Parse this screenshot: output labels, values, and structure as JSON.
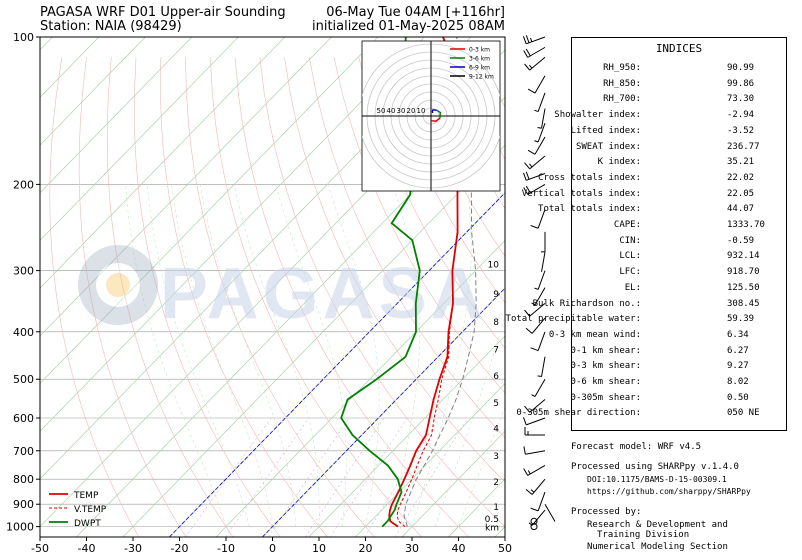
{
  "header": {
    "title_left": "PAGASA WRF D01 Upper-air Sounding",
    "station": "Station: NAIA (98429)",
    "valid_time": "06-May Tue 04AM [+116hr]",
    "init_time": "initialized 01-May-2025 08AM"
  },
  "watermark": "PAGASA",
  "colors": {
    "temp": "#e00000",
    "dwpt": "#008000",
    "vtemp": "#e00000",
    "parcel": "#808080",
    "isotherm": "#aad2aa",
    "dry_adiabat": "#f2b8b8",
    "moist_adiabat": "#c8e6c8",
    "mixing_ratio": "#d8b0d8",
    "zero_isotherm": "#0000cc"
  },
  "chart_data": {
    "type": "skew-t",
    "x_ticks": [
      -50,
      -40,
      -30,
      -20,
      -10,
      0,
      10,
      20,
      30,
      40,
      50
    ],
    "xlim": [
      -50,
      50
    ],
    "y_ticks": [
      100,
      200,
      300,
      400,
      500,
      600,
      700,
      800,
      900,
      1000
    ],
    "ylim": [
      1050,
      100
    ],
    "y_scale": "log",
    "height_labels": [
      {
        "label": "10",
        "p": 290
      },
      {
        "label": "9",
        "p": 333
      },
      {
        "label": "8",
        "p": 380
      },
      {
        "label": "7",
        "p": 433
      },
      {
        "label": "6",
        "p": 490
      },
      {
        "label": "5",
        "p": 556
      },
      {
        "label": "4",
        "p": 627
      },
      {
        "label": "3",
        "p": 714
      },
      {
        "label": "2",
        "p": 806
      },
      {
        "label": "1",
        "p": 908
      },
      {
        "label": "0.5",
        "p": 960
      }
    ],
    "height_unit": "km",
    "legend": [
      "TEMP",
      "V.TEMP",
      "DWPT"
    ],
    "legend_position": "bottom-left",
    "series": [
      {
        "name": "TEMP",
        "color": "#e00000",
        "dash": "",
        "points": [
          [
            1000,
            27
          ],
          [
            975,
            24.2
          ],
          [
            950,
            22.8
          ],
          [
            925,
            21.8
          ],
          [
            900,
            21
          ],
          [
            850,
            19.8
          ],
          [
            800,
            18.4
          ],
          [
            750,
            16.8
          ],
          [
            700,
            15
          ],
          [
            650,
            13.8
          ],
          [
            600,
            11
          ],
          [
            550,
            8
          ],
          [
            500,
            5
          ],
          [
            450,
            2
          ],
          [
            400,
            -3
          ],
          [
            350,
            -8
          ],
          [
            300,
            -15
          ],
          [
            250,
            -22
          ],
          [
            200,
            -32
          ],
          [
            175,
            -38
          ],
          [
            150,
            -44
          ],
          [
            125,
            -52
          ],
          [
            110,
            -60
          ],
          [
            100,
            -66
          ]
        ]
      },
      {
        "name": "V.TEMP",
        "color": "#e00000",
        "dash": "3,2",
        "points": [
          [
            1000,
            28.5
          ],
          [
            975,
            26
          ],
          [
            950,
            24.5
          ],
          [
            925,
            23.5
          ],
          [
            900,
            22.8
          ],
          [
            850,
            21.5
          ],
          [
            800,
            20
          ],
          [
            750,
            18.3
          ],
          [
            700,
            16.5
          ],
          [
            650,
            15
          ],
          [
            600,
            12
          ],
          [
            550,
            9
          ],
          [
            500,
            5.5
          ],
          [
            450,
            2.3
          ],
          [
            400,
            -2.8
          ],
          [
            350,
            -8
          ],
          [
            300,
            -15
          ]
        ]
      },
      {
        "name": "DWPT",
        "color": "#008000",
        "dash": "",
        "points": [
          [
            1000,
            23.6
          ],
          [
            975,
            23.6
          ],
          [
            950,
            23.2
          ],
          [
            925,
            22.8
          ],
          [
            900,
            22
          ],
          [
            850,
            20.5
          ],
          [
            800,
            17
          ],
          [
            750,
            12
          ],
          [
            700,
            5
          ],
          [
            650,
            -2
          ],
          [
            600,
            -8
          ],
          [
            550,
            -10.5
          ],
          [
            500,
            -8.5
          ],
          [
            450,
            -7
          ],
          [
            400,
            -10
          ],
          [
            350,
            -16
          ],
          [
            300,
            -22
          ],
          [
            260,
            -30
          ],
          [
            240,
            -38
          ],
          [
            210,
            -40
          ],
          [
            190,
            -44
          ],
          [
            170,
            -50
          ],
          [
            150,
            -56
          ],
          [
            125,
            -64
          ],
          [
            110,
            -70
          ],
          [
            100,
            -74
          ]
        ]
      },
      {
        "name": "",
        "color": "#808080",
        "dash": "5,3",
        "points": [
          [
            1000,
            29
          ],
          [
            950,
            26
          ],
          [
            900,
            24
          ],
          [
            850,
            22.5
          ],
          [
            800,
            21
          ],
          [
            750,
            19.8
          ],
          [
            700,
            18.5
          ],
          [
            650,
            16.8
          ],
          [
            600,
            15
          ],
          [
            550,
            12.8
          ],
          [
            500,
            10
          ],
          [
            450,
            6.5
          ],
          [
            400,
            2.5
          ],
          [
            350,
            -3
          ],
          [
            300,
            -10
          ],
          [
            250,
            -19
          ],
          [
            200,
            -29
          ],
          [
            150,
            -42
          ],
          [
            110,
            -59
          ],
          [
            100,
            -63
          ]
        ]
      }
    ],
    "hodograph": {
      "legend": [
        "0-3 km",
        "3-6 km",
        "6-9 km",
        "9-12 km"
      ],
      "colors": [
        "#e00000",
        "#008000",
        "#0000cc",
        "#000000"
      ],
      "ring_labels": [
        "50",
        "40",
        "30",
        "20",
        "10"
      ],
      "segments": [
        [
          [
            0,
            -1.5
          ],
          [
            -1.5,
            -1.6
          ],
          [
            -2.8,
            -0.7
          ]
        ],
        [
          [
            -2.8,
            -0.7
          ],
          [
            -2.9,
            1.1
          ],
          [
            -1.8,
            1.8
          ]
        ],
        [
          [
            -1.8,
            1.8
          ],
          [
            -0.6,
            1.9
          ],
          [
            -0.4,
            1.4
          ]
        ],
        [
          [
            -0.4,
            1.4
          ],
          [
            -0.6,
            1.0
          ]
        ]
      ]
    },
    "wind_barbs": [
      [
        1000,
        0,
        0
      ],
      [
        975,
        0,
        0
      ],
      [
        925,
        220,
        6
      ],
      [
        900,
        150,
        4
      ],
      [
        850,
        200,
        10
      ],
      [
        800,
        220,
        15
      ],
      [
        750,
        240,
        15
      ],
      [
        700,
        260,
        10
      ],
      [
        650,
        270,
        15
      ],
      [
        600,
        250,
        12
      ],
      [
        550,
        230,
        10
      ],
      [
        500,
        210,
        8
      ],
      [
        450,
        190,
        6
      ],
      [
        400,
        200,
        10
      ],
      [
        375,
        220,
        12
      ],
      [
        350,
        230,
        12
      ],
      [
        325,
        210,
        8
      ],
      [
        300,
        200,
        6
      ],
      [
        275,
        190,
        4
      ],
      [
        250,
        180,
        8
      ],
      [
        225,
        200,
        12
      ],
      [
        200,
        240,
        20
      ],
      [
        190,
        250,
        20
      ],
      [
        175,
        230,
        15
      ],
      [
        160,
        210,
        10
      ],
      [
        150,
        200,
        6
      ],
      [
        140,
        190,
        8
      ],
      [
        130,
        200,
        6
      ],
      [
        120,
        210,
        12
      ],
      [
        110,
        230,
        15
      ],
      [
        105,
        240,
        20
      ],
      [
        100,
        250,
        25
      ]
    ]
  },
  "indices": {
    "title": "INDICES",
    "rows": [
      {
        "label": "RH_950:",
        "value": "90.99"
      },
      {
        "label": "RH_850:",
        "value": "99.86"
      },
      {
        "label": "RH_700:",
        "value": "73.30"
      },
      {
        "label": "Showalter index:",
        "value": "-2.94"
      },
      {
        "label": "Lifted index:",
        "value": "-3.52"
      },
      {
        "label": "SWEAT index:",
        "value": "236.77"
      },
      {
        "label": "K index:",
        "value": "35.21"
      },
      {
        "label": "Cross totals index:",
        "value": "22.02"
      },
      {
        "label": "Vertical totals index:",
        "value": "22.05"
      },
      {
        "label": "Total totals index:",
        "value": "44.07"
      },
      {
        "label": "CAPE:",
        "value": "1333.70"
      },
      {
        "label": "CIN:",
        "value": "-0.59"
      },
      {
        "label": "LCL:",
        "value": "932.14"
      },
      {
        "label": "LFC:",
        "value": "918.70"
      },
      {
        "label": "EL:",
        "value": "125.50"
      },
      {
        "label": "Bulk Richardson no.:",
        "value": "308.45"
      },
      {
        "label": "Total precipitable water:",
        "value": "59.39"
      },
      {
        "label": "0-3 km mean wind:",
        "value": "6.34"
      },
      {
        "label": "0-1 km shear:",
        "value": "6.27"
      },
      {
        "label": "0-3 km shear:",
        "value": "9.27"
      },
      {
        "label": "0-6 km shear:",
        "value": "8.02"
      },
      {
        "label": "0-305m shear:",
        "value": "0.50"
      },
      {
        "label": "0-305m shear direction:",
        "value": "050 NE"
      }
    ]
  },
  "footer": {
    "forecast_model": "Forecast model: WRF v4.5",
    "processed_using": "Processed using SHARPpy v.1.4.0",
    "doi": "DOI:10.1175/BAMS-D-15-00309.1",
    "url": "https://github.com/sharppy/SHARPpy",
    "processed_by": "Processed by:",
    "division_line1": "Research & Development and",
    "division_line2": "Training Division",
    "section": "Numerical Modeling Section"
  }
}
